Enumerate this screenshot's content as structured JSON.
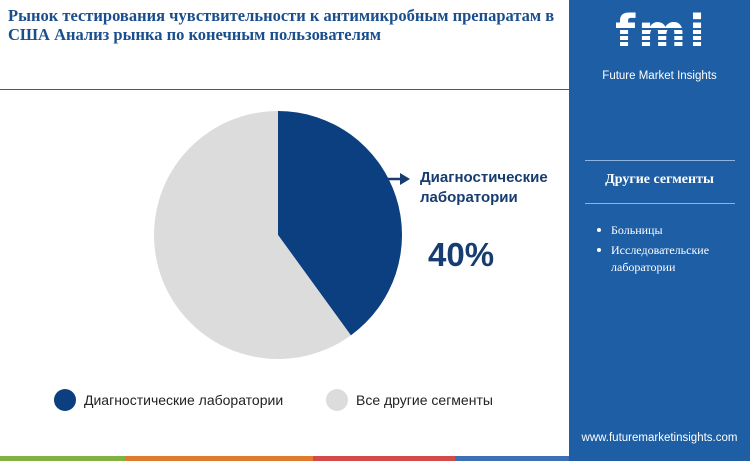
{
  "header": {
    "title": "Рынок тестирования чувствительности к антимикробным препаратам в США Анализ рынка по конечным пользователям"
  },
  "brand": {
    "logo_text": "fmi",
    "logo_subtitle": "Future Market Insights",
    "website": "www.futuremarketinsights.com"
  },
  "sidebar": {
    "heading": "Другие сегменты",
    "items": [
      "Больницы",
      "Исследовательские лаборатории"
    ]
  },
  "callout": {
    "label": "Диагностические лаборатории",
    "value": "40%"
  },
  "colors": {
    "primary": "#0b3f7f",
    "other": "#dcdcdc",
    "side_panel": "#1d5ea5",
    "title": "#1a4e8c"
  },
  "chart_data": {
    "type": "pie",
    "start_angle_deg": 0,
    "direction": "clockwise",
    "slices": [
      {
        "label": "Диагностические лаборатории",
        "value": 40,
        "color": "#0b3f7f"
      },
      {
        "label": "Все другие сегменты",
        "value": 60,
        "color": "#dcdcdc"
      }
    ],
    "legend": {
      "position": "bottom",
      "items": [
        "Диагностические лаборатории",
        "Все другие сегменты"
      ]
    }
  }
}
